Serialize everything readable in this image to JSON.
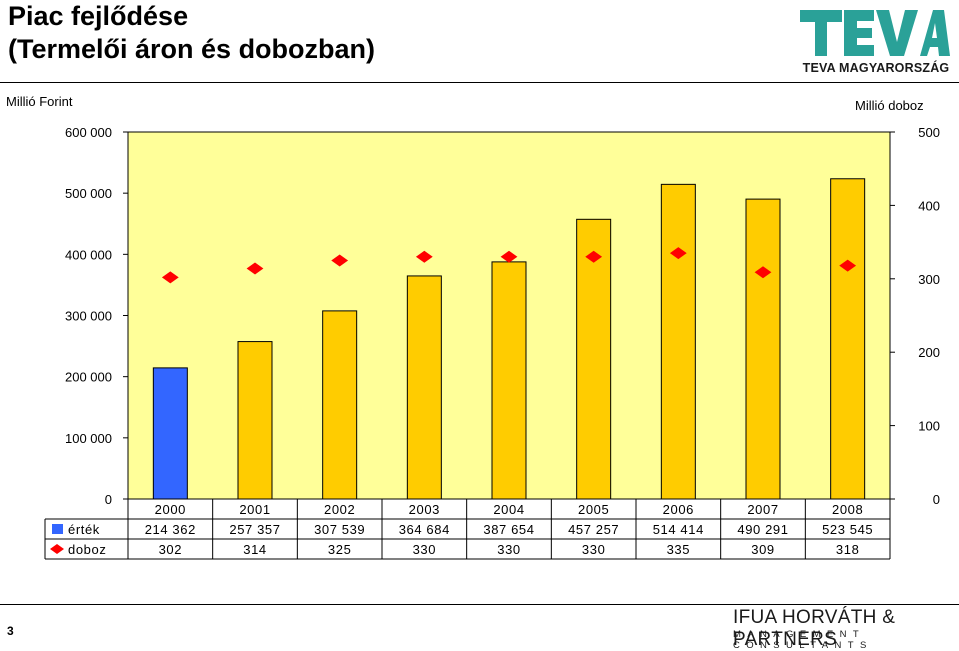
{
  "header": {
    "title_line1": "Piac fejlődése",
    "title_line2": "(Termelői áron és dobozban)"
  },
  "logo": {
    "text": "TEVA",
    "caption": "TEVA MAGYARORSZÁG",
    "color": "#2aa198"
  },
  "footer": {
    "page_number": "3",
    "company": "IFUA HORVÁTH & PARTNERS",
    "company_sub": "MANAGEMENT CONSULTANTS"
  },
  "chart_data": {
    "type": "bar",
    "left_axis_unit": "Millió Forint",
    "right_axis_unit": "Millió doboz",
    "categories": [
      "2000",
      "2001",
      "2002",
      "2003",
      "2004",
      "2005",
      "2006",
      "2007",
      "2008"
    ],
    "y_left": {
      "range": [
        0,
        600000
      ],
      "ticks": [
        0,
        100000,
        200000,
        300000,
        400000,
        500000,
        600000
      ],
      "tick_labels": [
        "0",
        "100 000",
        "200 000",
        "300 000",
        "400 000",
        "500 000",
        "600 000"
      ]
    },
    "y_right": {
      "range": [
        0,
        500
      ],
      "ticks": [
        0,
        100,
        200,
        300,
        400,
        500
      ],
      "tick_labels": [
        "0",
        "100",
        "200",
        "300",
        "400",
        "500"
      ]
    },
    "series": [
      {
        "name": "érték",
        "kind": "bar",
        "axis": "left",
        "values": [
          214362,
          257357,
          307539,
          364684,
          387654,
          457257,
          514414,
          490291,
          523545
        ],
        "value_labels": [
          "214 362",
          "257 357",
          "307 539",
          "364 684",
          "387 654",
          "457 257",
          "514 414",
          "490 291",
          "523 545"
        ],
        "color": "#ffcc00",
        "first_bar_color": "#3366ff"
      },
      {
        "name": "doboz",
        "kind": "marker",
        "marker": "diamond",
        "axis": "right",
        "values": [
          302,
          314,
          325,
          330,
          330,
          330,
          335,
          309,
          318
        ],
        "value_labels": [
          "302",
          "314",
          "325",
          "330",
          "330",
          "330",
          "335",
          "309",
          "318"
        ],
        "color": "#ff0000"
      }
    ],
    "plot_background": "#ffff99",
    "legend": "data-table"
  }
}
